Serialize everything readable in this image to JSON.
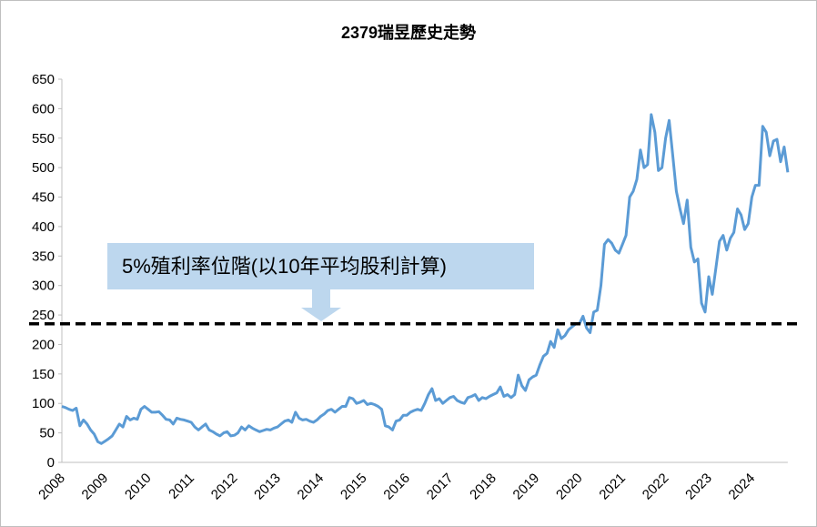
{
  "chart_data": {
    "type": "line",
    "title": "2379瑞昱歷史走勢",
    "categories": [
      "2008",
      null,
      null,
      null,
      null,
      null,
      null,
      null,
      null,
      null,
      null,
      null,
      "2009",
      null,
      null,
      null,
      null,
      null,
      null,
      null,
      null,
      null,
      null,
      null,
      "2010",
      null,
      null,
      null,
      null,
      null,
      null,
      null,
      null,
      null,
      null,
      null,
      "2011",
      null,
      null,
      null,
      null,
      null,
      null,
      null,
      null,
      null,
      null,
      null,
      "2012",
      null,
      null,
      null,
      null,
      null,
      null,
      null,
      null,
      null,
      null,
      null,
      "2013",
      null,
      null,
      null,
      null,
      null,
      null,
      null,
      null,
      null,
      null,
      null,
      "2014",
      null,
      null,
      null,
      null,
      null,
      null,
      null,
      null,
      null,
      null,
      null,
      "2015",
      null,
      null,
      null,
      null,
      null,
      null,
      null,
      null,
      null,
      null,
      null,
      "2016",
      null,
      null,
      null,
      null,
      null,
      null,
      null,
      null,
      null,
      null,
      null,
      "2017",
      null,
      null,
      null,
      null,
      null,
      null,
      null,
      null,
      null,
      null,
      null,
      "2018",
      null,
      null,
      null,
      null,
      null,
      null,
      null,
      null,
      null,
      null,
      null,
      "2019",
      null,
      null,
      null,
      null,
      null,
      null,
      null,
      null,
      null,
      null,
      null,
      "2020",
      null,
      null,
      null,
      null,
      null,
      null,
      null,
      null,
      null,
      null,
      null,
      "2021",
      null,
      null,
      null,
      null,
      null,
      null,
      null,
      null,
      null,
      null,
      null,
      "2022",
      null,
      null,
      null,
      null,
      null,
      null,
      null,
      null,
      null,
      null,
      null,
      "2023",
      null,
      null,
      null,
      null,
      null,
      null,
      null,
      null,
      null,
      null,
      null,
      "2024",
      null,
      null,
      null,
      null,
      null,
      null,
      null,
      null,
      null,
      null
    ],
    "series": [
      {
        "color": "#5b9bd5",
        "values": [
          95,
          93,
          90,
          88,
          92,
          62,
          72,
          65,
          55,
          48,
          35,
          32,
          36,
          40,
          45,
          55,
          65,
          60,
          78,
          72,
          75,
          73,
          90,
          95,
          90,
          85,
          85,
          86,
          80,
          73,
          72,
          65,
          75,
          73,
          72,
          70,
          68,
          60,
          55,
          60,
          65,
          55,
          52,
          48,
          45,
          50,
          52,
          45,
          46,
          50,
          60,
          55,
          62,
          58,
          55,
          52,
          54,
          56,
          55,
          58,
          60,
          65,
          70,
          72,
          68,
          85,
          75,
          72,
          73,
          70,
          68,
          72,
          78,
          82,
          88,
          90,
          85,
          90,
          95,
          95,
          110,
          108,
          100,
          102,
          105,
          98,
          100,
          98,
          95,
          90,
          62,
          60,
          55,
          70,
          72,
          80,
          80,
          85,
          88,
          90,
          88,
          100,
          115,
          125,
          105,
          108,
          100,
          105,
          110,
          112,
          105,
          102,
          100,
          110,
          112,
          115,
          105,
          110,
          108,
          112,
          115,
          118,
          128,
          112,
          115,
          110,
          115,
          148,
          130,
          122,
          140,
          145,
          148,
          165,
          180,
          185,
          205,
          195,
          225,
          210,
          215,
          225,
          230,
          235,
          235,
          248,
          228,
          220,
          255,
          258,
          300,
          370,
          378,
          372,
          360,
          355,
          370,
          385,
          450,
          460,
          480,
          530,
          500,
          505,
          590,
          560,
          495,
          500,
          550,
          580,
          520,
          460,
          430,
          405,
          445,
          365,
          340,
          345,
          270,
          255,
          315,
          285,
          330,
          375,
          385,
          360,
          380,
          390,
          430,
          420,
          395,
          405,
          450,
          470,
          470,
          570,
          560,
          520,
          545,
          548,
          510,
          535,
          492
        ]
      }
    ],
    "reference_line": {
      "value": 235,
      "color": "#000000"
    },
    "annotation": "5%殖利率位階(以10年平均股利計算)",
    "ylim": [
      0,
      650
    ],
    "yticks": [
      0,
      50,
      100,
      150,
      200,
      250,
      300,
      350,
      400,
      450,
      500,
      550,
      600,
      650
    ]
  }
}
